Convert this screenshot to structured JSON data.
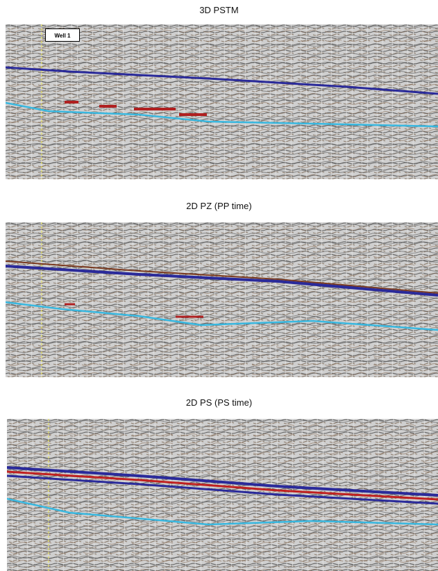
{
  "panels": [
    {
      "title": "3D PSTM",
      "label": "Well 1"
    },
    {
      "title": "2D PZ (PP time)"
    },
    {
      "title": "2D PS (PS time)"
    }
  ]
}
